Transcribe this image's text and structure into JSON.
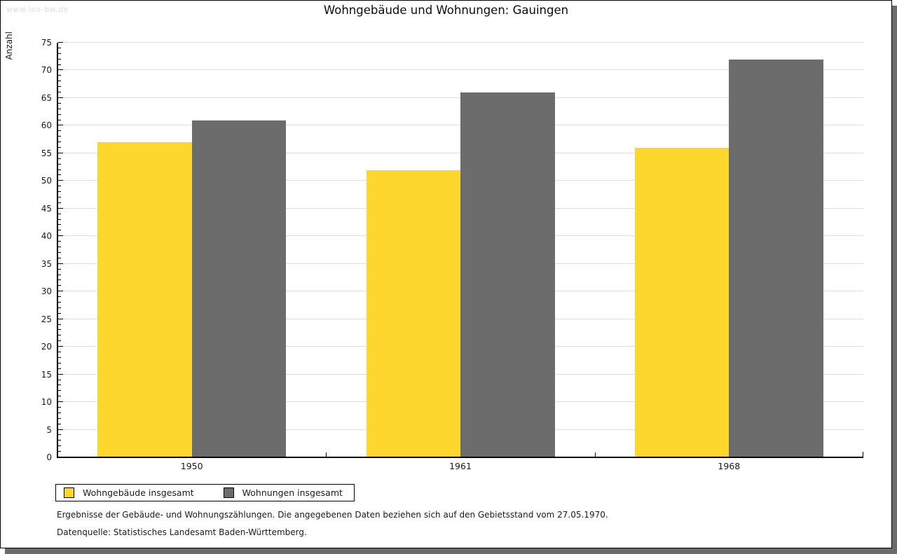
{
  "watermark": "www.leo-bw.de",
  "header": {
    "title": "Wohngebäude und Wohnungen: Gauingen"
  },
  "chart_data": {
    "type": "bar",
    "title": "Wohngebäude und Wohnungen: Gauingen",
    "categories": [
      "1950",
      "1961",
      "1968"
    ],
    "series": [
      {
        "name": "Wohngebäude insgesamt",
        "color": "#fdd62e",
        "values": [
          57,
          52,
          56
        ]
      },
      {
        "name": "Wohnungen insgesamt",
        "color": "#6c6c6c",
        "values": [
          61,
          66,
          72
        ]
      }
    ],
    "xlabel": "",
    "ylabel": "Anzahl",
    "ylim": [
      0,
      75
    ],
    "ytick_step": 5,
    "minor_tick_step": 1,
    "grid": true,
    "gridline_color": "#dedede",
    "legend_position": "bottom-left"
  },
  "footer": {
    "line1": "Ergebnisse der Gebäude- und Wohnungszählungen. Die angegebenen Daten beziehen sich auf den Gebietsstand vom 27.05.1970.",
    "line2": "Datenquelle: Statistisches Landesamt Baden-Württemberg."
  }
}
